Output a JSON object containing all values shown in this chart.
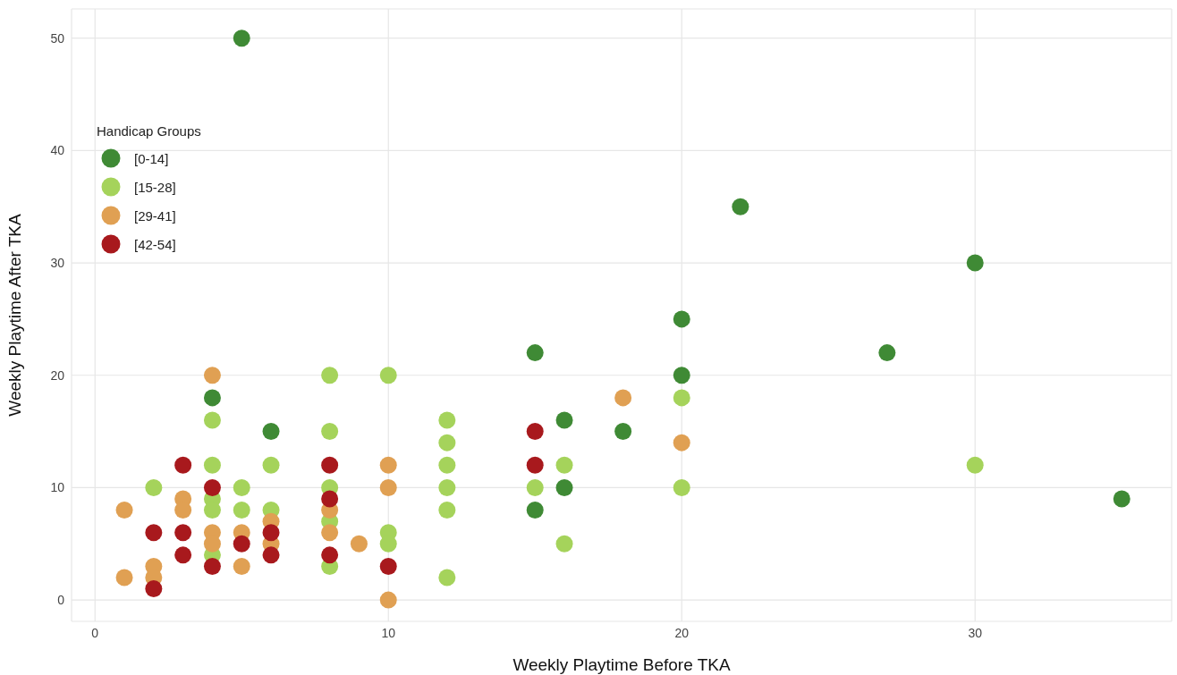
{
  "chart_data": {
    "type": "scatter",
    "xlabel": "Weekly Playtime Before TKA",
    "ylabel": "Weekly Playtime After TKA",
    "legend_title": "Handicap Groups",
    "xlim": [
      -0.8,
      36.7
    ],
    "ylim": [
      -1.9,
      52.6
    ],
    "xticks": [
      0,
      10,
      20,
      30
    ],
    "yticks": [
      0,
      10,
      20,
      30,
      40,
      50
    ],
    "grid": true,
    "legend": "top left",
    "marker": "circle",
    "series": [
      {
        "name": "[0-14]",
        "color": "#3f8a35",
        "x": [
          5,
          4,
          6,
          22,
          30,
          27,
          20,
          20,
          15,
          16,
          18,
          15,
          16,
          35
        ],
        "values": [
          50,
          18,
          15,
          35,
          30,
          22,
          25,
          20,
          22,
          16,
          15,
          8,
          10,
          9
        ]
      },
      {
        "name": "[15-28]",
        "color": "#a5d35b",
        "x": [
          2,
          4,
          4,
          4,
          4,
          4,
          5,
          5,
          6,
          6,
          8,
          8,
          8,
          8,
          8,
          10,
          10,
          10,
          12,
          12,
          12,
          12,
          12,
          12,
          15,
          16,
          16,
          20,
          20,
          30
        ],
        "values": [
          10,
          16,
          12,
          9,
          8,
          4,
          10,
          8,
          12,
          8,
          20,
          15,
          10,
          7,
          3,
          20,
          6,
          5,
          16,
          14,
          12,
          10,
          8,
          2,
          10,
          12,
          5,
          18,
          10,
          12
        ]
      },
      {
        "name": "[29-41]",
        "color": "#e0a053",
        "x": [
          1,
          1,
          2,
          2,
          3,
          3,
          4,
          4,
          4,
          5,
          5,
          6,
          6,
          8,
          8,
          9,
          10,
          10,
          10,
          18,
          20
        ],
        "values": [
          8,
          2,
          3,
          2,
          9,
          8,
          20,
          6,
          5,
          6,
          3,
          7,
          5,
          8,
          6,
          5,
          12,
          10,
          0,
          18,
          14
        ]
      },
      {
        "name": "[42-54]",
        "color": "#a8191d",
        "x": [
          2,
          2,
          3,
          3,
          3,
          4,
          4,
          5,
          6,
          6,
          8,
          8,
          8,
          10,
          15,
          15
        ],
        "values": [
          6,
          1,
          12,
          6,
          4,
          10,
          3,
          5,
          6,
          4,
          12,
          9,
          4,
          3,
          15,
          12
        ]
      }
    ]
  }
}
